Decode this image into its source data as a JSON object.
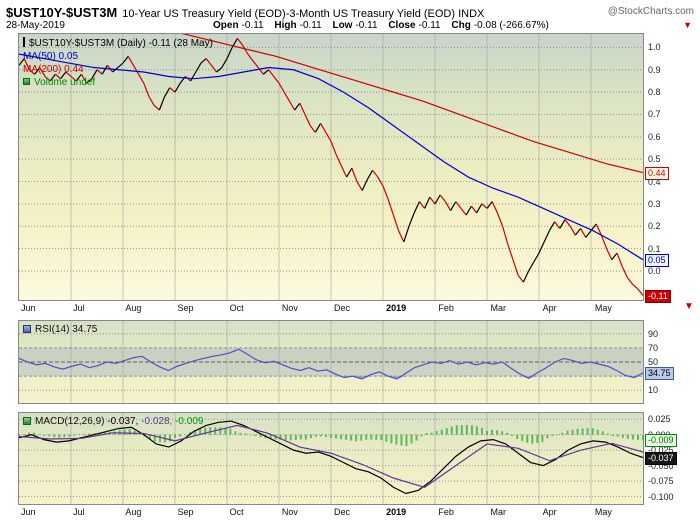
{
  "header": {
    "symbol": "$UST10Y-$UST3M",
    "description": "10-Year US Treasury Yield (EOD)-3-Month US Treasury Yield (EOD) INDX",
    "source": "@StockCharts.com",
    "date": "28-May-2019",
    "quote": [
      {
        "label": "Open",
        "value": "-0.11"
      },
      {
        "label": "High",
        "value": "-0.11"
      },
      {
        "label": "Low",
        "value": "-0.11"
      },
      {
        "label": "Close",
        "value": "-0.11"
      },
      {
        "label": "Chg",
        "value": "-0.08 (-266.67%)"
      }
    ],
    "direction_arrow": "▼"
  },
  "legend": {
    "price": "$UST10Y-$UST3M (Daily) -0.11 (28 May)",
    "ma50": "MA(50) 0.05",
    "ma200": "MA(200) 0.44",
    "volume": "Volume undef"
  },
  "rsi": {
    "label": "RSI(14) 34.75"
  },
  "macd": {
    "label": "MACD(12,26,9)",
    "v1": "-0.037,",
    "v2": "-0.028,",
    "v3": "-0.009"
  },
  "badges": [
    {
      "text": "0.44",
      "value": 0.44,
      "panel": "main",
      "style": "red-outline",
      "name": "ma200-last-value"
    },
    {
      "text": "0.05",
      "value": 0.05,
      "panel": "main",
      "style": "blue-outline",
      "name": "ma50-last-value"
    },
    {
      "text": "-0.11",
      "value": -0.11,
      "panel": "main",
      "style": "red-fill",
      "name": "close-last-value"
    },
    {
      "text": "34.75",
      "value": 34.75,
      "panel": "rsi",
      "style": "blue-fill",
      "name": "rsi-last-value"
    },
    {
      "text": "-0.009",
      "value": -0.009,
      "panel": "macd",
      "style": "green-outline",
      "name": "macd-hist-last-value"
    },
    {
      "text": "-0.037",
      "value": -0.037,
      "panel": "macd",
      "style": "black-fill",
      "name": "macd-last-value"
    }
  ],
  "chart_data": [
    {
      "type": "line",
      "title": "$UST10Y-$UST3M (Daily) — 10Y minus 3M US Treasury Yield spread",
      "x_labels": [
        "Jun",
        "Jul",
        "Aug",
        "Sep",
        "Oct",
        "Nov",
        "Dec",
        "2019",
        "Feb",
        "Mar",
        "Apr",
        "May"
      ],
      "ylim": [
        -0.13,
        1.06
      ],
      "grid": true,
      "legend_position": "top-left",
      "yticks": [
        {
          "label": "1.0",
          "value": 1.0
        },
        {
          "label": "0.9",
          "value": 0.9
        },
        {
          "label": "0.8",
          "value": 0.8
        },
        {
          "label": "0.7",
          "value": 0.7
        },
        {
          "label": "0.6",
          "value": 0.6
        },
        {
          "label": "0.5",
          "value": 0.5
        },
        {
          "label": "0.4",
          "value": 0.4
        },
        {
          "label": "0.3",
          "value": 0.3
        },
        {
          "label": "0.2",
          "value": 0.2
        },
        {
          "label": "0.1",
          "value": 0.1
        },
        {
          "label": "0.0",
          "value": 0.0
        }
      ],
      "series": [
        {
          "name": "$UST10Y-$UST3M",
          "style": "directional-line",
          "color_up": "#000000",
          "color_down": "#cc0000",
          "last": -0.11,
          "values": [
            0.92,
            0.95,
            0.9,
            0.88,
            0.91,
            0.87,
            0.85,
            0.88,
            0.86,
            0.89,
            0.87,
            0.85,
            0.88,
            0.84,
            0.86,
            0.9,
            0.88,
            0.92,
            0.89,
            0.91,
            0.93,
            0.96,
            0.92,
            0.88,
            0.84,
            0.78,
            0.74,
            0.72,
            0.78,
            0.82,
            0.8,
            0.84,
            0.87,
            0.85,
            0.89,
            0.93,
            0.95,
            0.92,
            0.89,
            0.91,
            0.95,
            1.0,
            1.04,
            1.01,
            0.97,
            0.94,
            0.91,
            0.88,
            0.9,
            0.87,
            0.84,
            0.8,
            0.76,
            0.72,
            0.75,
            0.7,
            0.65,
            0.62,
            0.66,
            0.62,
            0.58,
            0.52,
            0.47,
            0.42,
            0.46,
            0.4,
            0.36,
            0.41,
            0.45,
            0.42,
            0.38,
            0.32,
            0.25,
            0.18,
            0.13,
            0.2,
            0.26,
            0.31,
            0.28,
            0.33,
            0.3,
            0.34,
            0.31,
            0.27,
            0.31,
            0.28,
            0.25,
            0.29,
            0.26,
            0.3,
            0.28,
            0.31,
            0.26,
            0.2,
            0.12,
            0.05,
            -0.02,
            -0.05,
            0.0,
            0.04,
            0.08,
            0.13,
            0.18,
            0.22,
            0.19,
            0.23,
            0.2,
            0.16,
            0.19,
            0.15,
            0.18,
            0.21,
            0.16,
            0.1,
            0.05,
            0.08,
            0.02,
            -0.03,
            -0.06,
            -0.08,
            -0.11
          ]
        },
        {
          "name": "MA(50)",
          "style": "line",
          "color": "#0000cc",
          "last": 0.05,
          "values": [
            0.97,
            0.95,
            0.93,
            0.91,
            0.9,
            0.89,
            0.87,
            0.86,
            0.87,
            0.89,
            0.91,
            0.9,
            0.86,
            0.8,
            0.73,
            0.65,
            0.57,
            0.49,
            0.42,
            0.37,
            0.33,
            0.28,
            0.23,
            0.18,
            0.12,
            0.05
          ]
        },
        {
          "name": "MA(200)",
          "style": "line",
          "color": "#cc0000",
          "last": 0.44,
          "values": [
            1.2,
            1.17,
            1.14,
            1.11,
            1.08,
            1.04,
            1.0,
            0.96,
            0.91,
            0.86,
            0.81,
            0.76,
            0.7,
            0.64,
            0.58,
            0.53,
            0.48,
            0.44
          ]
        }
      ]
    },
    {
      "type": "line",
      "title": "RSI(14)",
      "ylim": [
        -8,
        108
      ],
      "band": [
        30,
        70
      ],
      "yticks": [
        {
          "label": "90",
          "value": 90
        },
        {
          "label": "70",
          "value": 70
        },
        {
          "label": "50",
          "value": 50
        },
        {
          "label": "30",
          "value": 30
        },
        {
          "label": "10",
          "value": 10
        }
      ],
      "series": [
        {
          "name": "RSI(14)",
          "style": "line",
          "color": "#5050c8",
          "last": 34.75,
          "values": [
            55,
            50,
            46,
            48,
            43,
            40,
            44,
            47,
            42,
            45,
            50,
            48,
            52,
            56,
            58,
            50,
            43,
            38,
            44,
            48,
            52,
            55,
            58,
            60,
            63,
            68,
            61,
            53,
            49,
            51,
            46,
            41,
            38,
            42,
            37,
            39,
            33,
            28,
            30,
            26,
            32,
            36,
            30,
            26,
            34,
            42,
            46,
            50,
            48,
            52,
            47,
            50,
            46,
            49,
            47,
            50,
            41,
            33,
            27,
            35,
            42,
            50,
            55,
            52,
            48,
            50,
            47,
            44,
            38,
            31,
            28,
            34.75
          ]
        }
      ]
    },
    {
      "type": "line+histogram",
      "title": "MACD(12,26,9)",
      "ylim": [
        -0.112,
        0.035
      ],
      "yticks": [
        {
          "label": "0.025",
          "value": 0.025
        },
        {
          "label": "0.000",
          "value": 0
        },
        {
          "label": "-0.025",
          "value": -0.025
        },
        {
          "label": "-0.050",
          "value": -0.05
        },
        {
          "label": "-0.075",
          "value": -0.075
        },
        {
          "label": "-0.100",
          "value": -0.1
        }
      ],
      "series": [
        {
          "name": "MACD",
          "style": "line",
          "color": "#000000",
          "last": -0.037,
          "values": [
            -0.005,
            0.0,
            -0.008,
            -0.012,
            -0.01,
            -0.005,
            0.0,
            0.005,
            0.01,
            0.012,
            0.0,
            -0.015,
            -0.02,
            -0.01,
            0.005,
            0.015,
            0.02,
            0.022,
            0.015,
            0.005,
            -0.005,
            -0.015,
            -0.025,
            -0.03,
            -0.028,
            -0.035,
            -0.045,
            -0.055,
            -0.06,
            -0.07,
            -0.085,
            -0.095,
            -0.09,
            -0.075,
            -0.055,
            -0.035,
            -0.02,
            -0.01,
            -0.008,
            -0.015,
            -0.03,
            -0.045,
            -0.05,
            -0.04,
            -0.025,
            -0.015,
            -0.01,
            -0.012,
            -0.02,
            -0.03,
            -0.037
          ]
        },
        {
          "name": "Signal(9)",
          "style": "line",
          "color": "#663399",
          "last": -0.028,
          "values": [
            -0.003,
            -0.007,
            -0.006,
            0.003,
            0.002,
            -0.01,
            0.003,
            0.015,
            0.002,
            -0.02,
            -0.03,
            -0.048,
            -0.07,
            -0.085,
            -0.05,
            -0.015,
            -0.022,
            -0.042,
            -0.025,
            -0.014,
            -0.028
          ]
        }
      ],
      "histogram": {
        "name": "MACD Histogram",
        "color": "#33aa33",
        "last": -0.009,
        "derived": "MACD-Signal"
      }
    }
  ]
}
